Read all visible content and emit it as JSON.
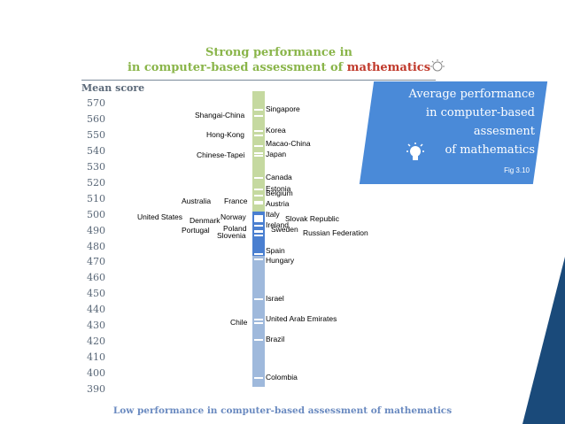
{
  "title": {
    "line1": "Strong performance in",
    "line2_prefix": "in computer-based assessment of ",
    "line2_accent": "mathematics"
  },
  "bottom_title": "Low performance in computer-based assessment of mathematics",
  "callout": {
    "line1": "Average performance",
    "line2": "in computer-based",
    "line3": "assesment",
    "line4": "of mathematics",
    "fig": "Fig 3.10"
  },
  "colors": {
    "top_band": "#c5d9a0",
    "middle_band": "#4a7fd0",
    "bottom_band": "#9fb9dc",
    "callout": "#4a8ad8",
    "accent": "#c0392b",
    "title": "#8ab54a",
    "strip": "#1a4a7a"
  },
  "chart_data": {
    "type": "scatter",
    "ylabel": "Mean score",
    "ylim": [
      390,
      570
    ],
    "yticks": [
      570,
      560,
      550,
      540,
      530,
      520,
      510,
      500,
      490,
      480,
      470,
      460,
      450,
      440,
      430,
      420,
      410,
      400,
      390
    ],
    "average_band": [
      474,
      502
    ],
    "points": [
      {
        "country": "Singapore",
        "score": 566,
        "side": "right"
      },
      {
        "country": "Shangai-China",
        "score": 562,
        "side": "left"
      },
      {
        "country": "Korea",
        "score": 553,
        "side": "right"
      },
      {
        "country": "Hong-Kong",
        "score": 550,
        "side": "left"
      },
      {
        "country": "Macao-China",
        "score": 543,
        "side": "right"
      },
      {
        "country": "Japan",
        "score": 539,
        "side": "right"
      },
      {
        "country": "Chinese-Tapei",
        "score": 537,
        "side": "left"
      },
      {
        "country": "Canada",
        "score": 523,
        "side": "right"
      },
      {
        "country": "Estonia",
        "score": 516,
        "side": "right"
      },
      {
        "country": "Belgium",
        "score": 512,
        "side": "right"
      },
      {
        "country": "Austria",
        "score": 507,
        "side": "right"
      },
      {
        "country": "Australia",
        "score": 508,
        "side": "left"
      },
      {
        "country": "France",
        "score": 508,
        "side": "left"
      },
      {
        "country": "Italy",
        "score": 499,
        "side": "right"
      },
      {
        "country": "Slovak Republic",
        "score": 497,
        "side": "right"
      },
      {
        "country": "United States",
        "score": 498,
        "side": "left"
      },
      {
        "country": "Norway",
        "score": 498,
        "side": "left"
      },
      {
        "country": "Denmark",
        "score": 496,
        "side": "left"
      },
      {
        "country": "Ireland",
        "score": 493,
        "side": "right"
      },
      {
        "country": "Poland",
        "score": 489,
        "side": "left"
      },
      {
        "country": "Portugal",
        "score": 489,
        "side": "left"
      },
      {
        "country": "Sweden",
        "score": 490,
        "side": "right"
      },
      {
        "country": "Slovenia",
        "score": 487,
        "side": "left"
      },
      {
        "country": "Russian Federation",
        "score": 489,
        "side": "right"
      },
      {
        "country": "Spain",
        "score": 475,
        "side": "right"
      },
      {
        "country": "Hungary",
        "score": 472,
        "side": "right"
      },
      {
        "country": "Israel",
        "score": 447,
        "side": "right"
      },
      {
        "country": "United Arab Emirates",
        "score": 434,
        "side": "right"
      },
      {
        "country": "Chile",
        "score": 432,
        "side": "left"
      },
      {
        "country": "Brazil",
        "score": 421,
        "side": "right"
      },
      {
        "country": "Colombia",
        "score": 397,
        "side": "right"
      }
    ]
  }
}
